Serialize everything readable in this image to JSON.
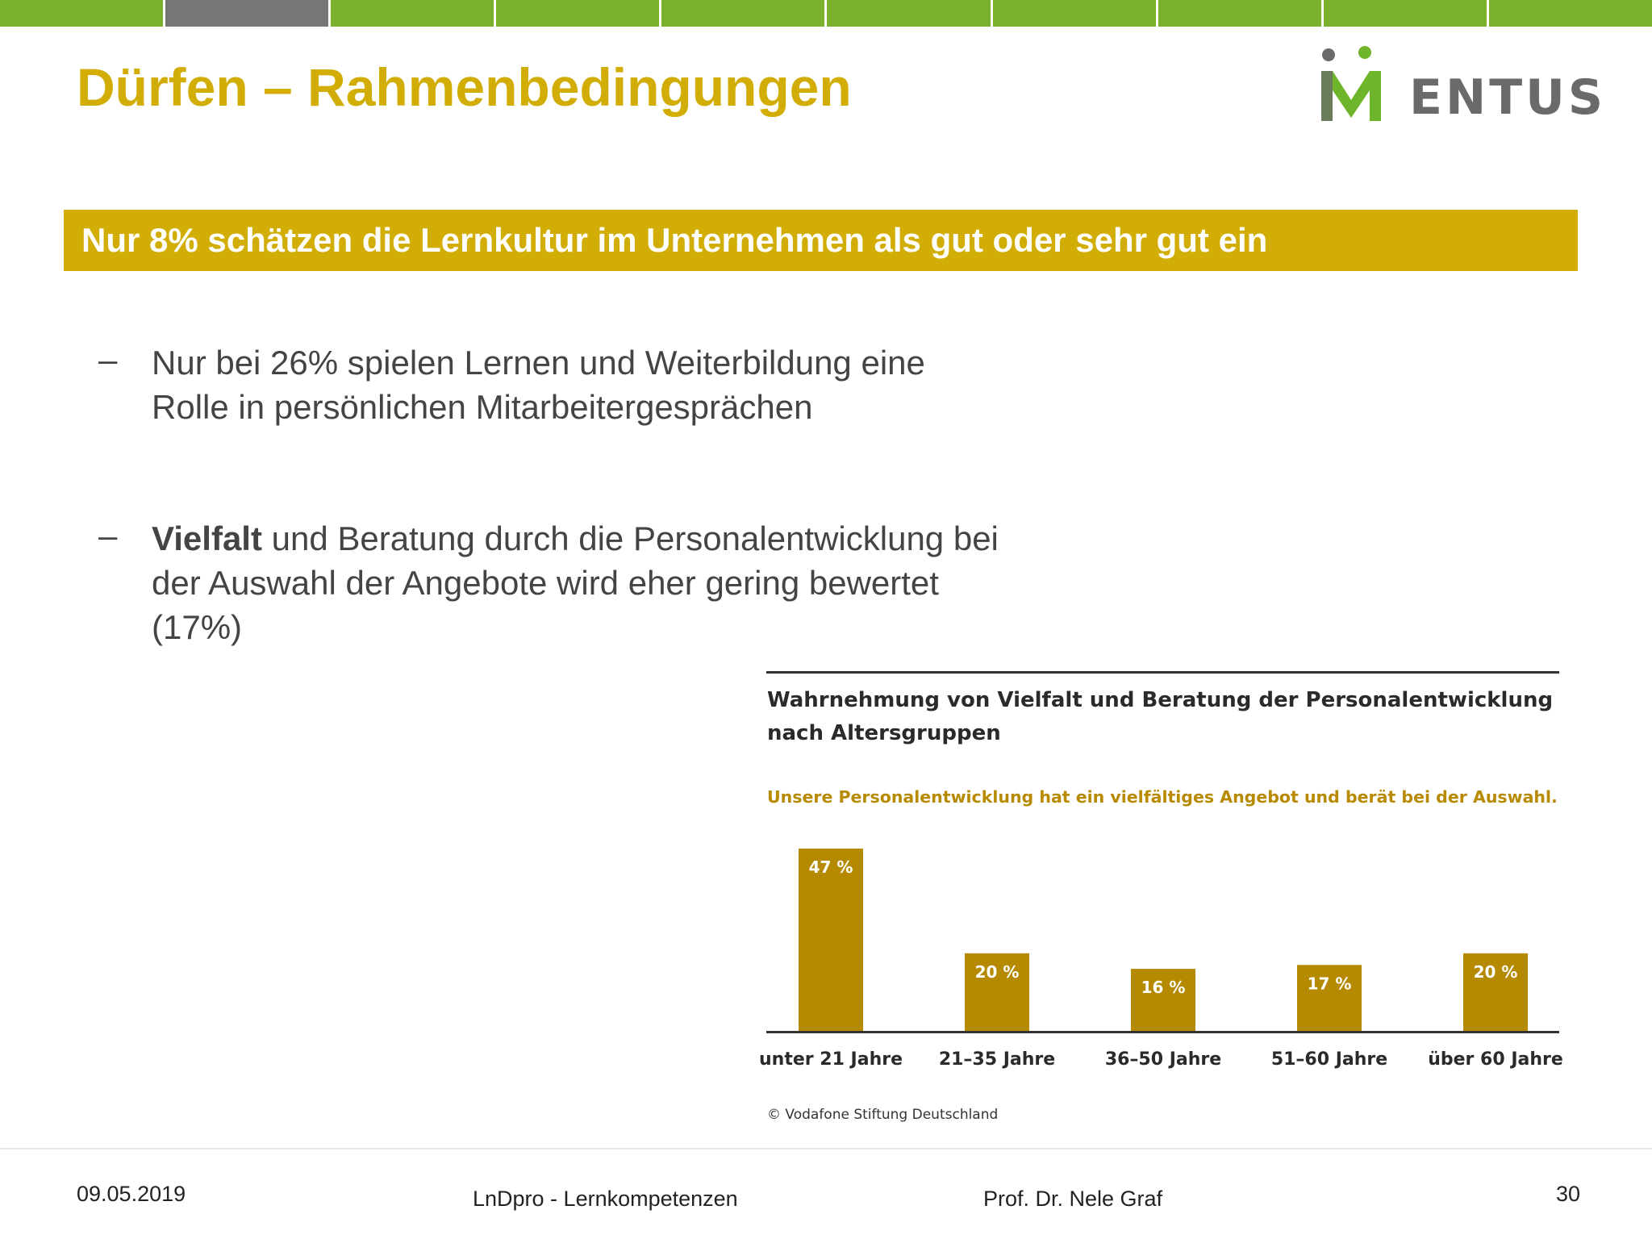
{
  "header": {
    "bar_colors": [
      "#7ab02b",
      "#767676",
      "#7ab02b",
      "#7ab02b",
      "#7ab02b",
      "#7ab02b",
      "#7ab02b",
      "#7ab02b",
      "#7ab02b",
      "#7ab02b"
    ],
    "title": "Dürfen – Rahmenbedingungen"
  },
  "logo": {
    "letter": "M",
    "wordmark": "ENTUS",
    "colors": {
      "green": "#6fb52c",
      "gray": "#6a6a6a"
    }
  },
  "banner": {
    "text": "Nur 8% schätzen die Lernkultur im Unternehmen als gut oder sehr gut ein",
    "color": "#d1ad05"
  },
  "bullets": [
    {
      "marker": "–",
      "bold": "",
      "text": "Nur bei 26% spielen Lernen und Weiterbildung eine Rolle in persönlichen Mitarbeitergesprächen"
    },
    {
      "marker": "–",
      "bold": "Vielfalt",
      "text": " und Beratung durch die Personalentwicklung bei der Auswahl der Angebote wird eher gering bewertet (17%)"
    }
  ],
  "chart_data": {
    "type": "bar",
    "title": "Wahrnehmung von Vielfalt und Beratung der Personalentwicklung nach Altersgruppen",
    "subtitle": "Unsere Personalentwicklung hat ein vielfältiges Angebot und berät bei der Auswahl.",
    "categories": [
      "unter 21 Jahre",
      "21–35 Jahre",
      "36–50 Jahre",
      "51–60 Jahre",
      "über 60 Jahre"
    ],
    "values": [
      47,
      20,
      16,
      17,
      20
    ],
    "value_labels": [
      "47 %",
      "20 %",
      "16 %",
      "17 %",
      "20 %"
    ],
    "unit": "%",
    "ylim": [
      0,
      50
    ],
    "grid": false,
    "legend": "none",
    "bar_color": "#b58a00",
    "source": "© Vodafone Stiftung Deutschland"
  },
  "footer": {
    "date": "09.05.2019",
    "course": "LnDpro - Lernkompetenzen",
    "author": "Prof. Dr. Nele Graf",
    "page": "30"
  }
}
